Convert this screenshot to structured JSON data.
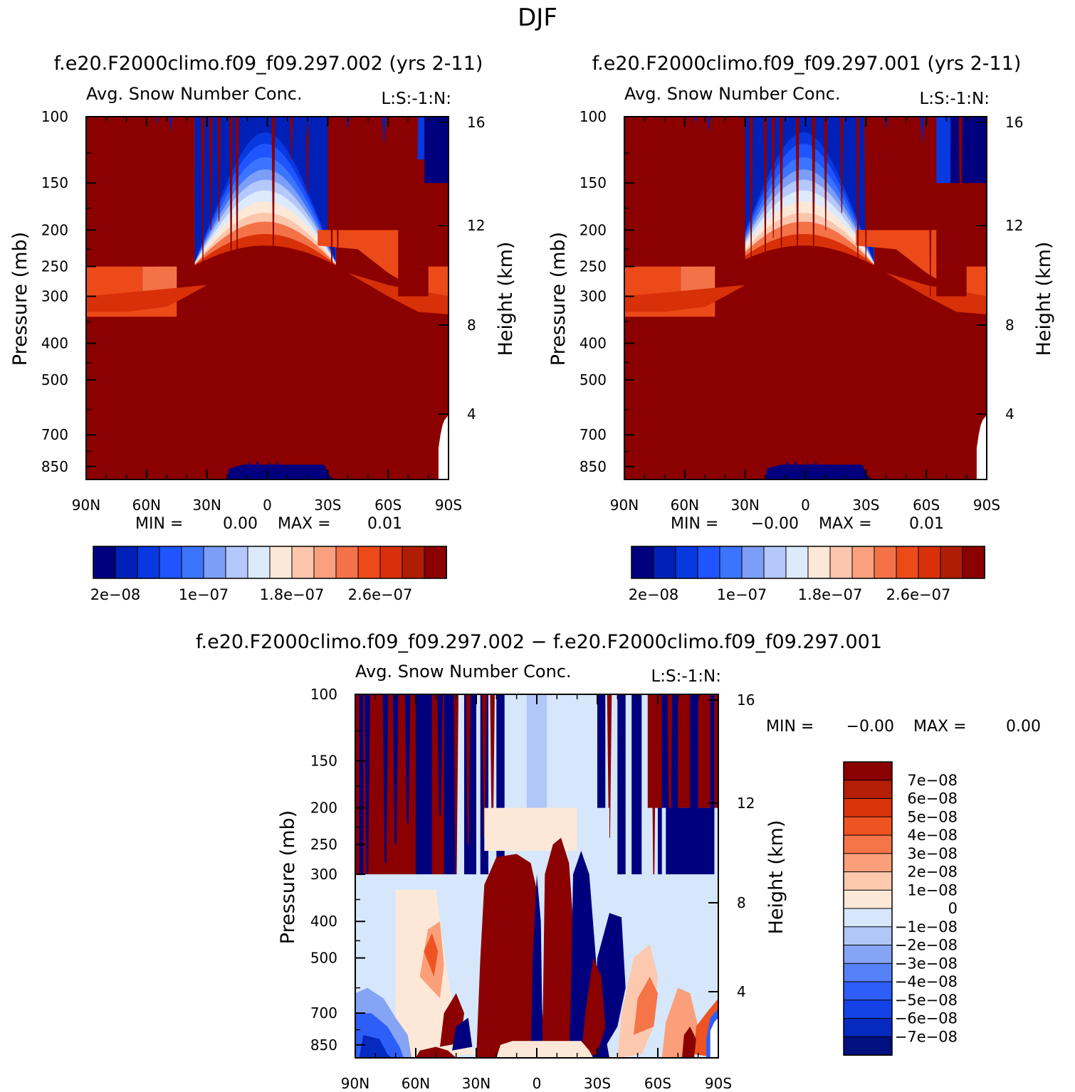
{
  "figure": {
    "title": "DJF"
  },
  "chart_data": [
    {
      "type": "heatmap",
      "run_title": "f.e20.F2000climo.f09_f09.297.002 (yrs 2-11)",
      "variable_title": "Avg. Snow Number Conc.",
      "corner_label": "L:S:-1:N:",
      "xlabel": "",
      "ylabel": "Pressure (mb)",
      "y2label": "Height (km)",
      "x_ticks": [
        "90N",
        "60N",
        "30N",
        "0",
        "30S",
        "60S",
        "90S"
      ],
      "y_ticks": [
        "100",
        "150",
        "200",
        "250",
        "300",
        "400",
        "500",
        "700",
        "850"
      ],
      "y2_ticks": [
        "16",
        "12",
        "8",
        "4"
      ],
      "min_label": "MIN =",
      "min_value": "0.00",
      "max_label": "MAX =",
      "max_value": "0.01",
      "colorbar_labels": [
        "2e-08",
        "1e-07",
        "1.8e-07",
        "2.6e-07"
      ]
    },
    {
      "type": "heatmap",
      "run_title": "f.e20.F2000climo.f09_f09.297.001 (yrs 2-11)",
      "variable_title": "Avg. Snow Number Conc.",
      "corner_label": "L:S:-1:N:",
      "xlabel": "",
      "ylabel": "Pressure (mb)",
      "y2label": "Height (km)",
      "x_ticks": [
        "90N",
        "60N",
        "30N",
        "0",
        "30S",
        "60S",
        "90S"
      ],
      "y_ticks": [
        "100",
        "150",
        "200",
        "250",
        "300",
        "400",
        "500",
        "700",
        "850"
      ],
      "y2_ticks": [
        "16",
        "12",
        "8",
        "4"
      ],
      "min_label": "MIN =",
      "min_value": "-0.00",
      "max_label": "MAX =",
      "max_value": "0.01",
      "colorbar_labels": [
        "2e-08",
        "1e-07",
        "1.8e-07",
        "2.6e-07"
      ]
    },
    {
      "type": "heatmap",
      "run_title": "f.e20.F2000climo.f09_f09.297.002 - f.e20.F2000climo.f09_f09.297.001",
      "variable_title": "Avg. Snow Number Conc.",
      "corner_label": "L:S:-1:N:",
      "xlabel": "",
      "ylabel": "Pressure (mb)",
      "y2label": "Height (km)",
      "x_ticks": [
        "90N",
        "60N",
        "30N",
        "0",
        "30S",
        "60S",
        "90S"
      ],
      "y_ticks": [
        "100",
        "150",
        "200",
        "250",
        "300",
        "400",
        "500",
        "700",
        "850"
      ],
      "y2_ticks": [
        "16",
        "12",
        "8",
        "4"
      ],
      "min_label": "MIN =",
      "min_value": "-0.00",
      "max_label": "MAX =",
      "max_value": "0.00",
      "colorbar_labels": [
        "7e-08",
        "6e-08",
        "5e-08",
        "4e-08",
        "3e-08",
        "2e-08",
        "1e-08",
        "0",
        "-1e-08",
        "-2e-08",
        "-3e-08",
        "-4e-08",
        "-5e-08",
        "-6e-08",
        "-7e-08"
      ]
    }
  ],
  "colors": {
    "seq": [
      "#00007f",
      "#0020b8",
      "#0838e0",
      "#1f55ff",
      "#3b74ff",
      "#7c9ef8",
      "#b4c8fb",
      "#dceafc",
      "#fde8d8",
      "#fcc6ad",
      "#faa07e",
      "#f47248",
      "#ec4a18",
      "#d83008",
      "#b01d05",
      "#8b0000"
    ],
    "div": [
      "#8b0000",
      "#b31e04",
      "#d9340a",
      "#ef5322",
      "#f57548",
      "#fa9f79",
      "#fcc9ae",
      "#fde8d8",
      "#d6e6fb",
      "#b0c7f7",
      "#86a4f4",
      "#5580f6",
      "#2e5ef8",
      "#1342e6",
      "#052abf",
      "#00107f"
    ],
    "dark_red": "#8b0000",
    "dark_blue": "#00007f"
  }
}
